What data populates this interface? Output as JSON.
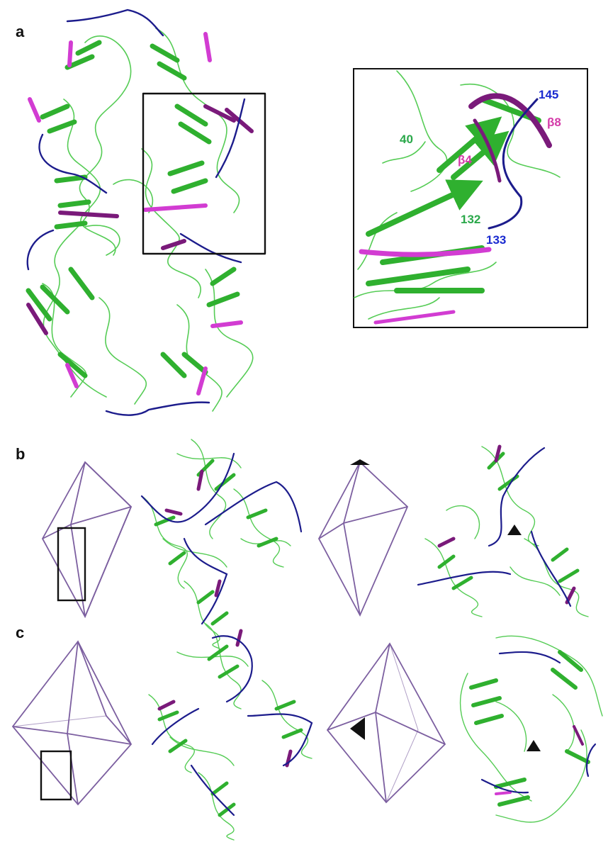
{
  "panels": {
    "a": {
      "letter": "a"
    },
    "b": {
      "letter": "b"
    },
    "c": {
      "letter": "c"
    }
  },
  "inset": {
    "labels": {
      "res_145": "145",
      "beta8": "β8",
      "res_40": "40",
      "beta4": "β4",
      "res_132": "132",
      "res_133": "133"
    }
  },
  "colors": {
    "strand_green": "#3ec83e",
    "loop_green": "#46c846",
    "magenta": "#d23cd2",
    "purple": "#7a1a7a",
    "navy": "#1c1c8c",
    "wireframe": "#7c5fa0",
    "label_green": "#2aa84a",
    "label_magenta": "#d43aa8",
    "label_blue": "#1a2ad0"
  },
  "icons": {
    "symmetry_marker": "black-triangle-icon",
    "selection_box": "black-rectangle-outline"
  }
}
